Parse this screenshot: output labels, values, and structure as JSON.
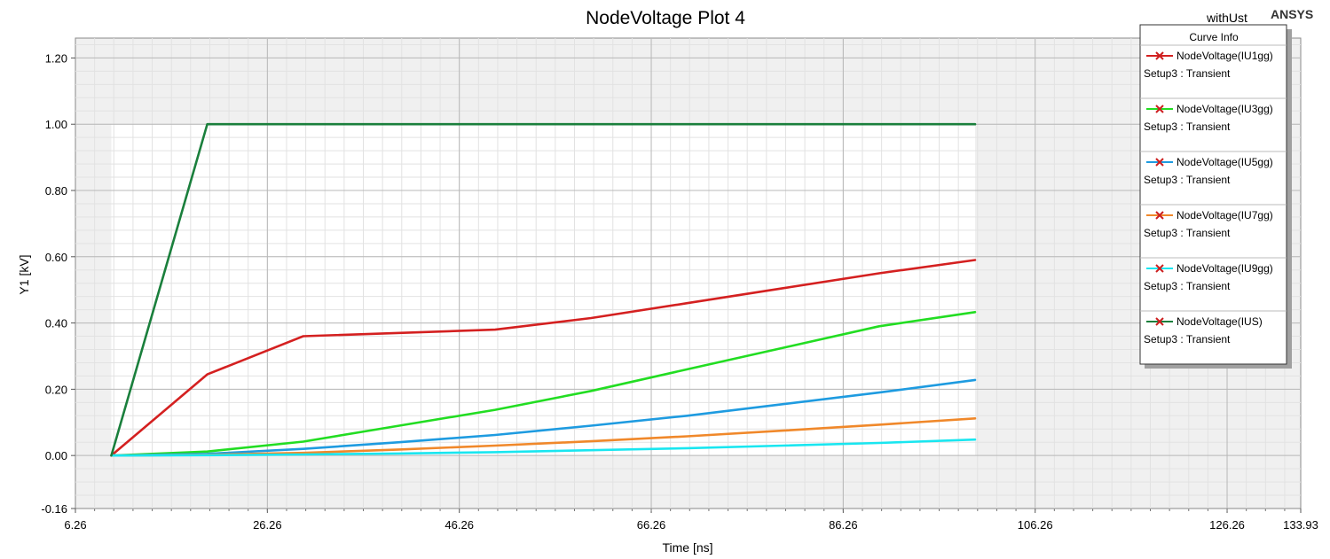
{
  "header": {
    "variant": "withUst",
    "brand": "ANSYS"
  },
  "legend": {
    "title": "Curve Info"
  },
  "chart_data": {
    "type": "line",
    "title": "NodeVoltage Plot 4",
    "xlabel": "Time [ns]",
    "ylabel": "Y1 [kV]",
    "xlim": [
      6.26,
      133.93
    ],
    "ylim": [
      -0.16,
      1.26
    ],
    "x_ticks": [
      6.26,
      26.26,
      46.26,
      66.26,
      86.26,
      106.26,
      126.26,
      133.93
    ],
    "y_ticks": [
      -0.16,
      0.0,
      0.2,
      0.4,
      0.6,
      0.8,
      1.0,
      1.2
    ],
    "x_tick_labels": [
      "6.26",
      "26.26",
      "46.26",
      "66.26",
      "86.26",
      "106.26",
      "126.26",
      "133.93"
    ],
    "y_tick_labels": [
      "-0.16",
      "0.00",
      "0.20",
      "0.40",
      "0.60",
      "0.80",
      "1.00",
      "1.20"
    ],
    "grid": true,
    "legend_position": "top-right",
    "series": [
      {
        "name": "NodeVoltage(IU1gg)",
        "setup": "Setup3 : Transient",
        "color": "#d42020",
        "x": [
          10,
          20,
          30,
          50,
          60,
          70,
          80,
          90,
          100
        ],
        "y": [
          0,
          0.245,
          0.36,
          0.38,
          0.415,
          0.46,
          0.505,
          0.55,
          0.59
        ]
      },
      {
        "name": "NodeVoltage(IU3gg)",
        "setup": "Setup3 : Transient",
        "color": "#22dd22",
        "x": [
          10,
          20,
          30,
          40,
          50,
          60,
          70,
          80,
          90,
          100
        ],
        "y": [
          0,
          0.012,
          0.042,
          0.09,
          0.138,
          0.195,
          0.26,
          0.325,
          0.39,
          0.433
        ]
      },
      {
        "name": "NodeVoltage(IU5gg)",
        "setup": "Setup3 : Transient",
        "color": "#1e9be0",
        "x": [
          10,
          20,
          30,
          40,
          50,
          60,
          70,
          80,
          90,
          100
        ],
        "y": [
          0,
          0.005,
          0.02,
          0.04,
          0.062,
          0.09,
          0.12,
          0.155,
          0.19,
          0.228
        ]
      },
      {
        "name": "NodeVoltage(IU7gg)",
        "setup": "Setup3 : Transient",
        "color": "#f0882a",
        "x": [
          10,
          20,
          30,
          40,
          50,
          60,
          70,
          80,
          90,
          100
        ],
        "y": [
          0,
          0.002,
          0.008,
          0.018,
          0.03,
          0.043,
          0.058,
          0.075,
          0.093,
          0.112
        ]
      },
      {
        "name": "NodeVoltage(IU9gg)",
        "setup": "Setup3 : Transient",
        "color": "#19e6f0",
        "x": [
          10,
          20,
          30,
          40,
          50,
          60,
          70,
          80,
          90,
          100
        ],
        "y": [
          0,
          0.001,
          0.003,
          0.006,
          0.01,
          0.016,
          0.022,
          0.03,
          0.038,
          0.048
        ]
      },
      {
        "name": "NodeVoltage(IUS)",
        "setup": "Setup3 : Transient",
        "color": "#1a7f3c",
        "x": [
          10,
          20,
          100
        ],
        "y": [
          0,
          1.0,
          1.0
        ]
      }
    ]
  }
}
